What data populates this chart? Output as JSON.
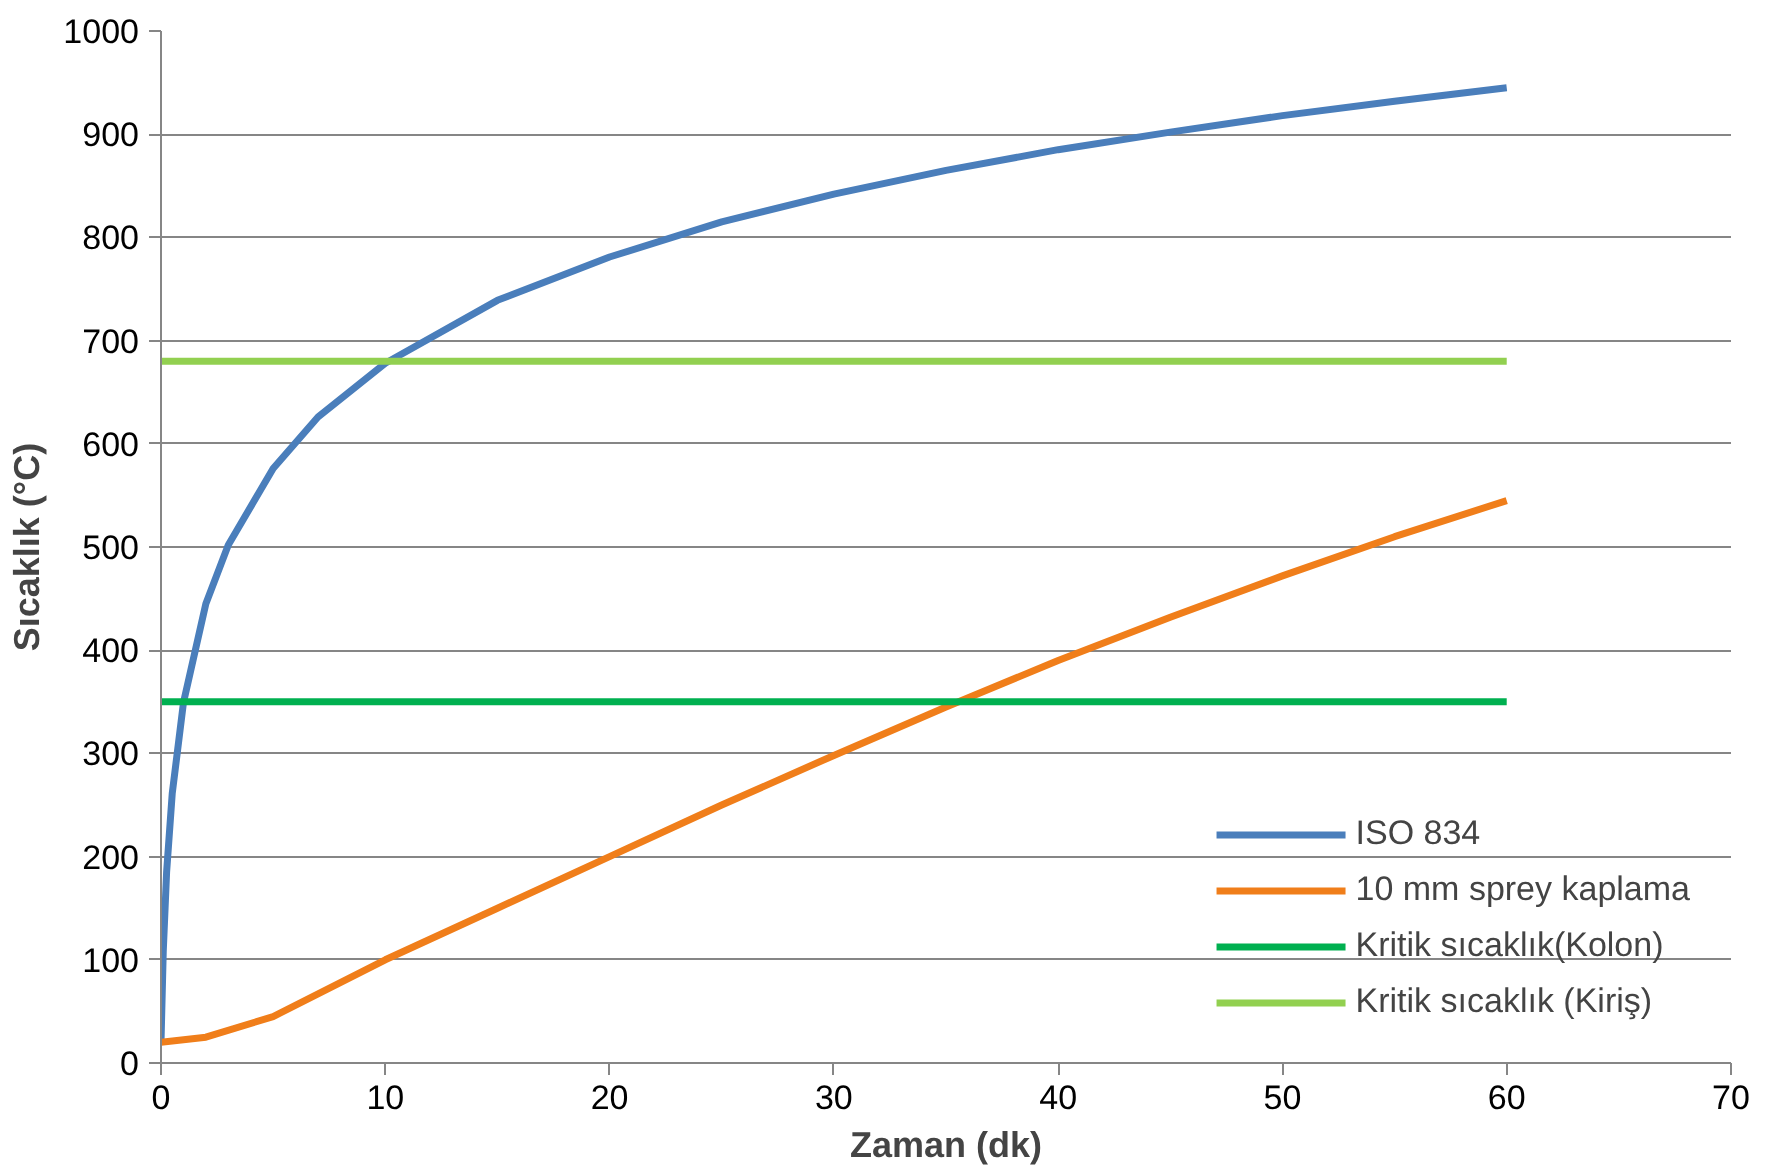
{
  "chart_data": {
    "type": "line",
    "xlabel": "Zaman (dk)",
    "ylabel": "Sıcaklık (°C)",
    "xlim": [
      0,
      70
    ],
    "xticks": [
      0,
      10,
      20,
      30,
      40,
      50,
      60,
      70
    ],
    "ylim": [
      0,
      1000
    ],
    "yticks": [
      0,
      100,
      200,
      300,
      400,
      500,
      600,
      700,
      800,
      900,
      1000
    ],
    "grid": "y",
    "legend": "bottom right",
    "line_style": "solid",
    "marker": "none",
    "series": [
      {
        "name": "ISO 834",
        "color": "#4a7ebb",
        "x": [
          0,
          0.1,
          0.25,
          0.5,
          1,
          2,
          3,
          5,
          7,
          10,
          15,
          20,
          25,
          30,
          35,
          40,
          45,
          50,
          55,
          60
        ],
        "values": [
          20,
          108,
          185,
          261,
          349,
          445,
          502,
          576,
          626,
          678,
          739,
          781,
          815,
          842,
          865,
          885,
          902,
          918,
          932,
          945
        ]
      },
      {
        "name": "10 mm sprey kaplama",
        "color": "#f07e1a",
        "x": [
          0,
          2,
          5,
          10,
          15,
          20,
          25,
          30,
          35,
          40,
          45,
          50,
          55,
          60
        ],
        "values": [
          20,
          25,
          45,
          100,
          150,
          200,
          250,
          298,
          345,
          390,
          432,
          472,
          510,
          545
        ]
      },
      {
        "name": "Kritik sıcaklık(Kolon)",
        "color": "#00b050",
        "x": [
          0,
          60
        ],
        "values": [
          350,
          350
        ]
      },
      {
        "name": "Kritik sıcaklık (Kiriş)",
        "color": "#92d050",
        "x": [
          0,
          60
        ],
        "values": [
          680,
          680
        ]
      }
    ]
  }
}
